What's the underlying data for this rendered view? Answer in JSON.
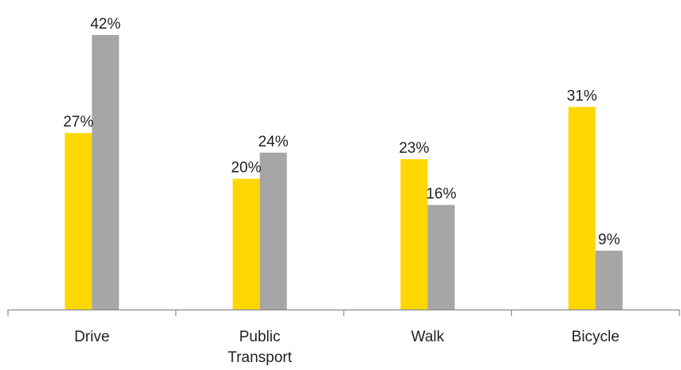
{
  "chart_data": {
    "type": "bar",
    "categories": [
      [
        "Drive"
      ],
      [
        "Public",
        "Transport"
      ],
      [
        "Walk"
      ],
      [
        "Bicycle"
      ]
    ],
    "series": [
      {
        "values": [
          27,
          20,
          23,
          31
        ],
        "color": "#FFD700"
      },
      {
        "values": [
          42,
          24,
          16,
          9
        ],
        "color": "#A6A6A6"
      }
    ],
    "value_suffix": "%",
    "ylim": [
      0,
      42
    ],
    "grid": false,
    "legend": "none",
    "axis_color": "#8C8C8C"
  }
}
